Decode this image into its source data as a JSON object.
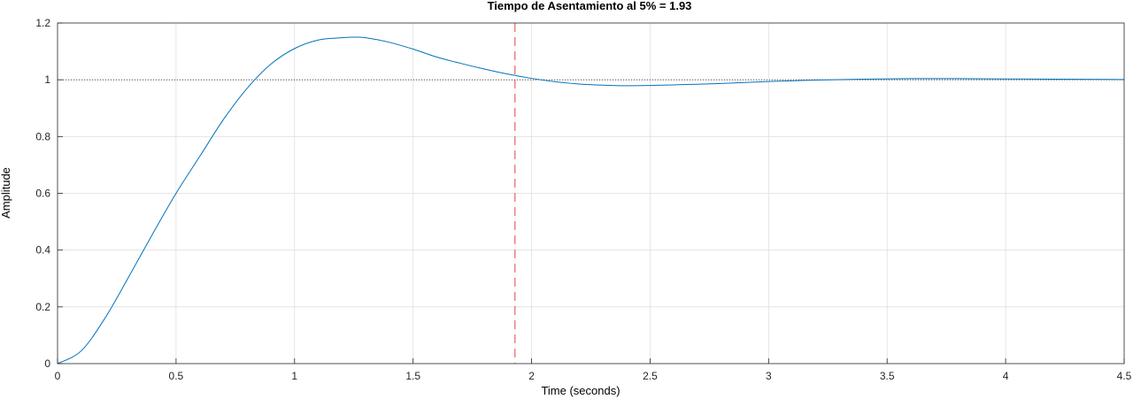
{
  "chart_data": {
    "type": "line",
    "title": "Tiempo de Asentamiento al 5% = 1.93",
    "xlabel": "Time (seconds)",
    "ylabel": "Amplitude",
    "xlim": [
      0,
      4.5
    ],
    "ylim": [
      0,
      1.2
    ],
    "xticks": [
      0,
      0.5,
      1,
      1.5,
      2,
      2.5,
      3,
      3.5,
      4,
      4.5
    ],
    "xtick_labels": [
      "0",
      "0.5",
      "1",
      "1.5",
      "2",
      "2.5",
      "3",
      "3.5",
      "4",
      "4.5"
    ],
    "yticks": [
      0,
      0.2,
      0.4,
      0.6,
      0.8,
      1,
      1.2
    ],
    "ytick_labels": [
      "0",
      "0.2",
      "0.4",
      "0.6",
      "0.8",
      "1",
      "1.2"
    ],
    "grid": true,
    "series": [
      {
        "color": "#0072bd",
        "x": [
          0,
          0.1,
          0.2,
          0.3,
          0.4,
          0.5,
          0.6,
          0.7,
          0.8,
          0.9,
          1.0,
          1.1,
          1.2,
          1.25,
          1.3,
          1.4,
          1.5,
          1.6,
          1.7,
          1.8,
          1.9,
          2.0,
          2.1,
          2.2,
          2.3,
          2.4,
          2.5,
          2.6,
          2.8,
          3.0,
          3.2,
          3.4,
          3.6,
          3.8,
          4.0,
          4.2,
          4.5
        ],
        "y": [
          0,
          0.045,
          0.16,
          0.305,
          0.455,
          0.6,
          0.73,
          0.86,
          0.97,
          1.055,
          1.11,
          1.14,
          1.148,
          1.15,
          1.148,
          1.132,
          1.108,
          1.08,
          1.058,
          1.038,
          1.02,
          1.005,
          0.993,
          0.985,
          0.981,
          0.979,
          0.98,
          0.982,
          0.987,
          0.994,
          0.999,
          1.002,
          1.004,
          1.004,
          1.003,
          1.002,
          1.001
        ]
      }
    ],
    "reference_line": {
      "y": 1,
      "style": "dotted",
      "color": "#333333"
    },
    "settling_line": {
      "x": 1.93,
      "style": "dashed",
      "color": "#e8414a"
    }
  }
}
